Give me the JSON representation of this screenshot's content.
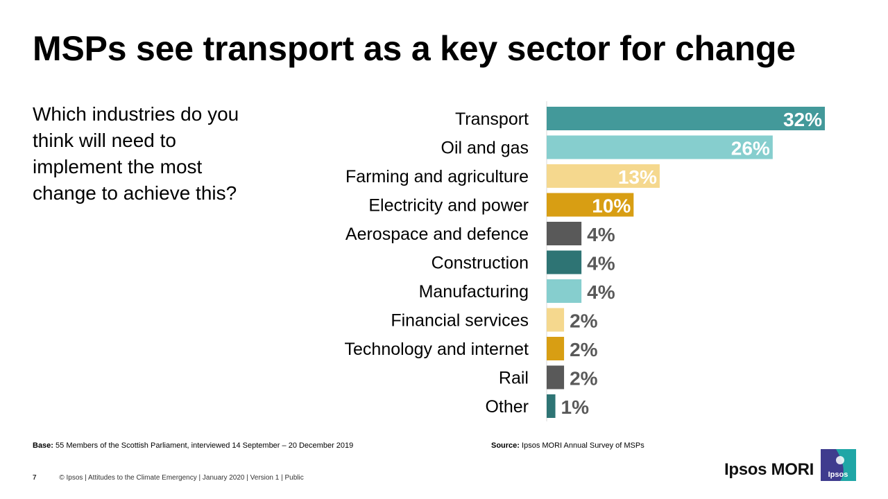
{
  "title": "MSPs see transport as a key sector for change",
  "question": "Which industries do you think will need to implement the most change to achieve this?",
  "footnotes": {
    "base_label": "Base:",
    "base_text": "55 Members of the Scottish Parliament, interviewed 14 September – 20 December 2019",
    "source_label": "Source:",
    "source_text": "Ipsos MORI Annual Survey of MSPs"
  },
  "footer": {
    "page_number": "7",
    "text": "© Ipsos | Attitudes to the Climate Emergency | January 2020 | Version 1 | Public"
  },
  "brand": {
    "wordmark": "Ipsos MORI",
    "logo_text": "Ipsos"
  },
  "colors": {
    "teal": "#43999A",
    "light_teal": "#86CECE",
    "light_yellow": "#F5D88E",
    "gold": "#D89E13",
    "dark_grey": "#595959",
    "dark_teal": "#2E7474",
    "label_white": "#FFFFFF",
    "label_grey": "#595959",
    "axis": "#D9D9D9",
    "logo_blue": "#3F3C8E",
    "logo_teal": "#1FA6A6"
  },
  "chart_data": {
    "type": "bar",
    "orientation": "horizontal",
    "categories": [
      "Transport",
      "Oil and gas",
      "Farming and agriculture",
      "Electricity and power",
      "Aerospace and defence",
      "Construction",
      "Manufacturing",
      "Financial services",
      "Technology and internet",
      "Rail",
      "Other"
    ],
    "values": [
      32,
      26,
      13,
      10,
      4,
      4,
      4,
      2,
      2,
      2,
      1
    ],
    "value_labels": [
      "32%",
      "26%",
      "13%",
      "10%",
      "4%",
      "4%",
      "4%",
      "2%",
      "2%",
      "2%",
      "1%"
    ],
    "bar_colors": [
      "#43999A",
      "#86CECE",
      "#F5D88E",
      "#D89E13",
      "#595959",
      "#2E7474",
      "#86CECE",
      "#F5D88E",
      "#D89E13",
      "#595959",
      "#2E7474"
    ],
    "unit": "%",
    "xlim": [
      0,
      32
    ],
    "grid": false,
    "legend": "none"
  }
}
